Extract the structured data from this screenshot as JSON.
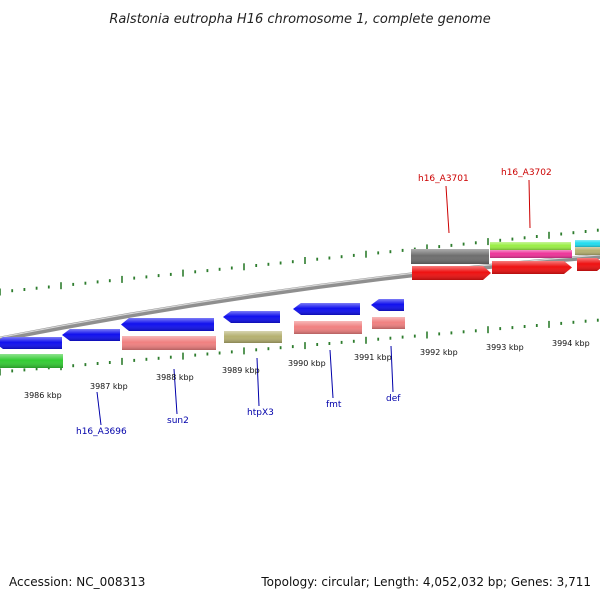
{
  "title": "Ralstonia eutropha H16 chromosome 1, complete genome",
  "footer": {
    "accession": "Accession: NC_008313",
    "topology": "Topology: circular; Length: 4,052,032 bp; Genes: 3,711"
  },
  "colors": {
    "tick_color": "#2e7d2e",
    "backbone": "#8f8f8f",
    "label_forward": "#cc0000",
    "label_reverse": "#0000aa",
    "blue": "#1010ee",
    "green": "#33cc33",
    "pink": "#f08080",
    "olive": "#b5b070",
    "red": "#ee1111",
    "gray": "#6e6e6e",
    "lime": "#99ee44",
    "magenta": "#ee3399",
    "cyan": "#22ddee"
  },
  "kbp_labels": [
    "3986 kbp",
    "3987 kbp",
    "3988 kbp",
    "3989 kbp",
    "3990 kbp",
    "3991 kbp",
    "3992 kbp",
    "3993 kbp",
    "3994 kbp"
  ],
  "gene_labels": {
    "forward": [
      "h16_A3701",
      "h16_A3702"
    ],
    "reverse": [
      "h16_A3696",
      "sun2",
      "htpX3",
      "fmt",
      "def"
    ]
  },
  "genes": [
    {
      "color": "blue",
      "shape": "arrow-left"
    },
    {
      "color": "green",
      "shape": "bar"
    },
    {
      "color": "blue",
      "shape": "arrow-left"
    },
    {
      "color": "blue",
      "shape": "arrow-left"
    },
    {
      "color": "pink",
      "shape": "bar"
    },
    {
      "color": "blue",
      "shape": "arrow-left"
    },
    {
      "color": "olive",
      "shape": "bar"
    },
    {
      "color": "blue",
      "shape": "arrow-left"
    },
    {
      "color": "pink",
      "shape": "bar"
    },
    {
      "color": "blue",
      "shape": "arrow-left"
    },
    {
      "color": "pink",
      "shape": "bar"
    },
    {
      "color": "gray",
      "shape": "bar"
    },
    {
      "color": "red",
      "shape": "arrow-right"
    },
    {
      "color": "lime",
      "shape": "bar"
    },
    {
      "color": "magenta",
      "shape": "bar"
    },
    {
      "color": "red",
      "shape": "arrow-right"
    },
    {
      "color": "cyan",
      "shape": "bar"
    },
    {
      "color": "olive",
      "shape": "bar"
    },
    {
      "color": "red",
      "shape": "arrow-right"
    }
  ]
}
